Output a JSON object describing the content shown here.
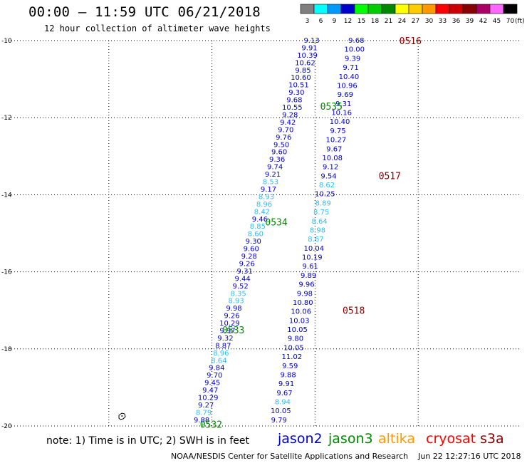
{
  "header": {
    "title": "00:00 — 11:59 UTC 06/21/2018",
    "subtitle": "12 hour collection of altimeter wave heights"
  },
  "legend": {
    "unit_label": "(ft)",
    "bins": [
      {
        "label": "3",
        "color": "#7f7f7f"
      },
      {
        "label": "6",
        "color": "#00ffff"
      },
      {
        "label": "9",
        "color": "#0099ff"
      },
      {
        "label": "12",
        "color": "#0000cc"
      },
      {
        "label": "15",
        "color": "#00ff00"
      },
      {
        "label": "18",
        "color": "#00cc00"
      },
      {
        "label": "21",
        "color": "#008800"
      },
      {
        "label": "24",
        "color": "#ffff00"
      },
      {
        "label": "27",
        "color": "#ffcc00"
      },
      {
        "label": "30",
        "color": "#ff9900"
      },
      {
        "label": "33",
        "color": "#ff0000"
      },
      {
        "label": "36",
        "color": "#cc0000"
      },
      {
        "label": "39",
        "color": "#880000"
      },
      {
        "label": "42",
        "color": "#aa0066"
      },
      {
        "label": "45",
        "color": "#ff66ff"
      },
      {
        "label": "70",
        "color": "#000000"
      }
    ]
  },
  "footer": {
    "note": "note: 1) Time is in UTC; 2) SWH is in feet",
    "satellites": [
      {
        "name": "jason2",
        "color": "#0000cc"
      },
      {
        "name": "jason3",
        "color": "#008800"
      },
      {
        "name": "altika",
        "color": "#ff9900"
      },
      {
        "name": "cryosat",
        "color": "#ff0000"
      },
      {
        "name": "s3a",
        "color": "#880000"
      }
    ],
    "credit": "NOAA/NESDIS Center for Satellite Applications and Research    Jun 22 12:27:16 UTC 2018"
  },
  "chart_data": {
    "type": "scatter",
    "title": "00:00 — 11:59 UTC 06/21/2018",
    "subtitle": "12 hour collection of altimeter wave heights",
    "xlim": [
      60,
      75
    ],
    "ylim": [
      -20,
      -10
    ],
    "x_ticks": [
      "60",
      "63",
      "66",
      "69",
      "72",
      "75"
    ],
    "y_ticks": [
      "-10",
      "-12",
      "-14",
      "-16",
      "-18",
      "-20"
    ],
    "grid": true,
    "unit": "ft",
    "colors": {
      "dark": "#0000cc",
      "light": "#33bbee",
      "jason3": "#008800",
      "s3a": "#880000"
    },
    "tracks": [
      {
        "id": "track-a",
        "start": [
          68.9,
          -10.0
        ],
        "end": [
          65.7,
          -19.85
        ],
        "values": [
          "9.13",
          "9.91",
          "10.39",
          "10.62",
          "9.85",
          "10.60",
          "10.51",
          "9.30",
          "9.68",
          "10.55",
          "9.28",
          "9.42",
          "9.70",
          "9.76",
          "9.50",
          "9.60",
          "9.36",
          "9.74",
          "9.21",
          "8.53",
          "9.17",
          "8.93",
          "8.96",
          "8.42",
          "9.46",
          "8.85",
          "8.60",
          "9.30",
          "9.60",
          "9.28",
          "9.26",
          "9.31",
          "9.44",
          "9.52",
          "8.35",
          "8.93",
          "9.98",
          "9.26",
          "10.29",
          "9.97",
          "9.32",
          "8.87",
          "8.96",
          "8.64",
          "9.84",
          "9.70",
          "9.45",
          "9.47",
          "10.29",
          "9.27",
          "8.79",
          "9.88"
        ],
        "light": [
          "8.53",
          "8.93",
          "8.96",
          "8.42",
          "8.85",
          "8.60",
          "8.35",
          "8.93",
          "8.96",
          "8.64",
          "8.79"
        ]
      },
      {
        "id": "track-b",
        "start": [
          70.2,
          -10.0
        ],
        "end": [
          67.95,
          -19.85
        ],
        "values": [
          "9.68",
          "10.00",
          "9.39",
          "9.71",
          "10.40",
          "10.96",
          "9.69",
          "9.31",
          "10.16",
          "10.40",
          "9.75",
          "10.27",
          "9.67",
          "10.08",
          "9.12",
          "9.54",
          "8.62",
          "10.25",
          "8.89",
          "8.75",
          "8.64",
          "8.98",
          "8.67",
          "10.04",
          "10.19",
          "9.61",
          "9.89",
          "9.96",
          "9.98",
          "10.80",
          "10.06",
          "10.03",
          "10.05",
          "9.80",
          "10.05",
          "11.02",
          "9.59",
          "9.88",
          "9.91",
          "9.67",
          "8.94",
          "10.05",
          "9.79"
        ],
        "light": [
          "8.62",
          "8.89",
          "8.75",
          "8.64",
          "8.98",
          "8.67",
          "8.94"
        ]
      }
    ],
    "time_labels": [
      {
        "text": "0516",
        "satellite": "s3a",
        "lon": 71.45,
        "lat": -10.0
      },
      {
        "text": "0517",
        "satellite": "s3a",
        "lon": 70.85,
        "lat": -13.5
      },
      {
        "text": "0518",
        "satellite": "s3a",
        "lon": 69.8,
        "lat": -17.0
      },
      {
        "text": "0535",
        "satellite": "jason3",
        "lon": 69.15,
        "lat": -11.7
      },
      {
        "text": "0534",
        "satellite": "jason3",
        "lon": 67.55,
        "lat": -14.7
      },
      {
        "text": "0533",
        "satellite": "jason3",
        "lon": 66.3,
        "lat": -17.5
      },
      {
        "text": "0532",
        "satellite": "jason3",
        "lon": 65.65,
        "lat": -19.95
      }
    ]
  }
}
